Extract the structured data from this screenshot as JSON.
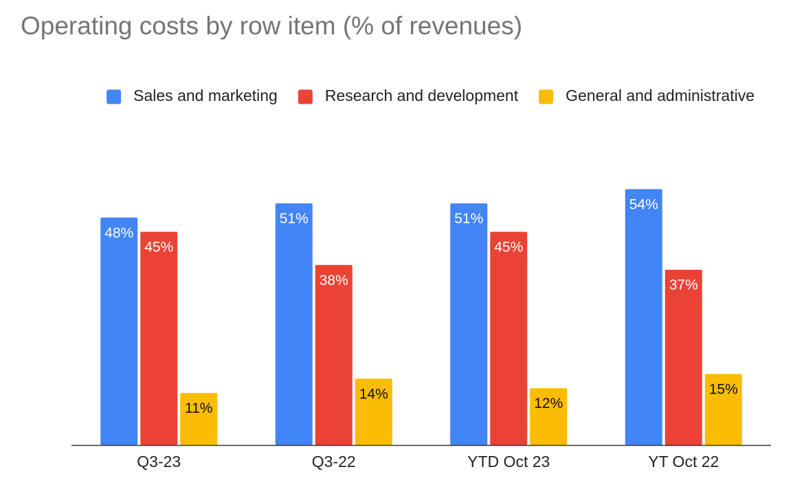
{
  "chart_data": {
    "type": "bar",
    "title": "Operating costs by row item (% of revenues)",
    "xlabel": "",
    "ylabel": "",
    "ylim": [
      0,
      60
    ],
    "grid": false,
    "legend_position": "top-right",
    "value_suffix": "%",
    "categories": [
      "Q3-23",
      "Q3-22",
      "YTD Oct 23",
      "YT Oct 22"
    ],
    "series": [
      {
        "name": "Sales and marketing",
        "color": "#4285F4",
        "label_color": "#ffffff",
        "values": [
          48,
          51,
          51,
          54
        ]
      },
      {
        "name": "Research and development",
        "color": "#EA4335",
        "label_color": "#ffffff",
        "values": [
          45,
          38,
          45,
          37
        ]
      },
      {
        "name": "General and administrative",
        "color": "#FBBC04",
        "label_color": "#111111",
        "values": [
          11,
          14,
          12,
          15
        ]
      }
    ]
  }
}
